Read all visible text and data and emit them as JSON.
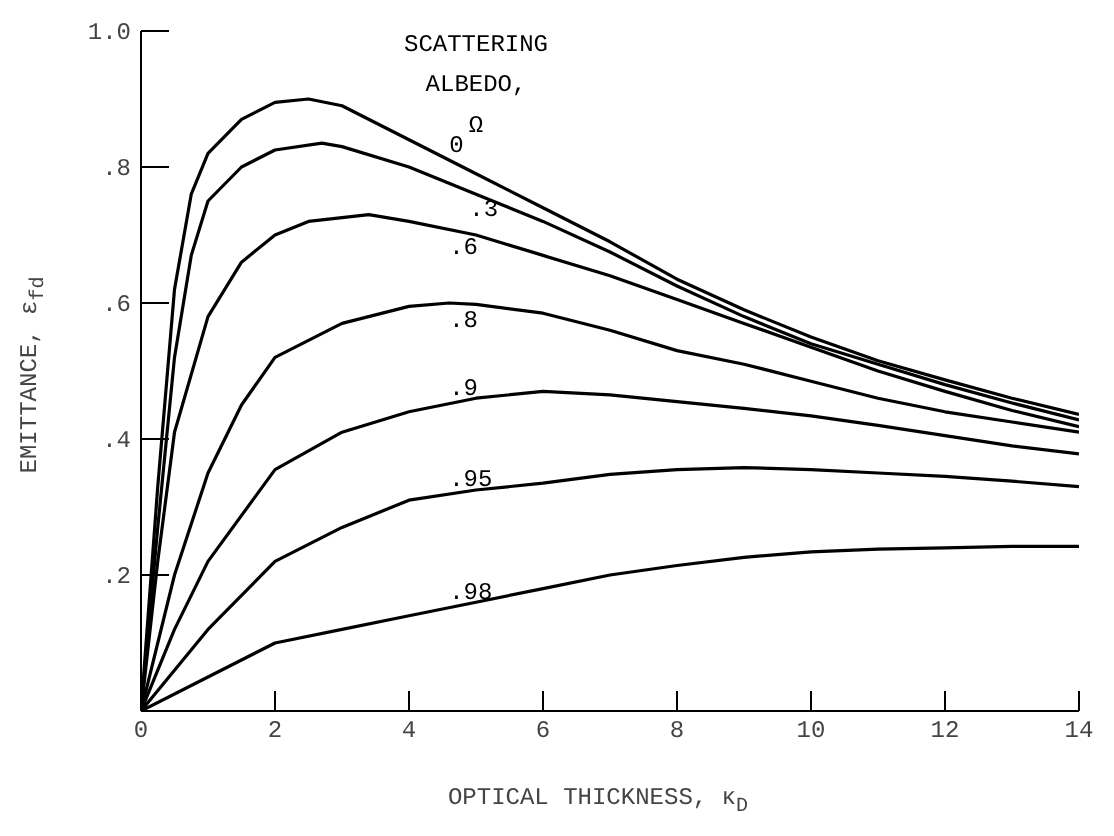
{
  "chart_data": {
    "type": "line",
    "xlabel": "OPTICAL THICKNESS, κ$_{D}$",
    "ylabel": "EMITTANCE, ε$_{fd}$",
    "legend_title": "SCATTERING ALBEDO, Ω",
    "xlim": [
      0,
      14
    ],
    "ylim": [
      0,
      1.0
    ],
    "xticks": [
      0,
      2,
      4,
      6,
      8,
      10,
      12,
      14
    ],
    "yticks": [
      {
        "value": 0,
        "label": null
      },
      {
        "value": 0.2,
        "label": ".2"
      },
      {
        "value": 0.4,
        "label": ".4"
      },
      {
        "value": 0.6,
        "label": ".6"
      },
      {
        "value": 0.8,
        "label": ".8"
      },
      {
        "value": 1.0,
        "label": "1.0"
      }
    ],
    "grid": false,
    "legend": false,
    "marker": "none",
    "line_style": "solid",
    "series": [
      {
        "name": "0",
        "color": "#000000",
        "x": [
          0,
          0.25,
          0.5,
          0.75,
          1,
          1.5,
          2,
          2.5,
          3,
          4,
          5,
          6,
          7,
          8,
          9,
          10,
          11,
          12,
          13,
          14
        ],
        "values": [
          0,
          0.33,
          0.62,
          0.76,
          0.82,
          0.87,
          0.895,
          0.9,
          0.89,
          0.84,
          0.79,
          0.74,
          0.69,
          0.635,
          0.59,
          0.55,
          0.515,
          0.487,
          0.46,
          0.436
        ]
      },
      {
        "name": ".3",
        "color": "#000000",
        "x": [
          0,
          0.25,
          0.5,
          0.75,
          1,
          1.5,
          2,
          2.7,
          3,
          4,
          5,
          6,
          7,
          8,
          9,
          10,
          11,
          12,
          13,
          14
        ],
        "values": [
          0,
          0.27,
          0.52,
          0.67,
          0.75,
          0.8,
          0.825,
          0.835,
          0.83,
          0.8,
          0.76,
          0.72,
          0.675,
          0.625,
          0.58,
          0.54,
          0.51,
          0.48,
          0.453,
          0.428
        ]
      },
      {
        "name": ".6",
        "color": "#000000",
        "x": [
          0,
          0.25,
          0.5,
          1,
          1.5,
          2,
          2.5,
          3.4,
          4,
          5,
          6,
          7,
          8,
          9,
          10,
          11,
          12,
          13,
          14
        ],
        "values": [
          0,
          0.22,
          0.41,
          0.58,
          0.66,
          0.7,
          0.72,
          0.73,
          0.72,
          0.7,
          0.67,
          0.64,
          0.605,
          0.57,
          0.535,
          0.5,
          0.47,
          0.442,
          0.418
        ]
      },
      {
        "name": ".8",
        "color": "#000000",
        "x": [
          0,
          0.5,
          1,
          1.5,
          2,
          3,
          4,
          4.6,
          5,
          6,
          7,
          8,
          9,
          10,
          11,
          12,
          13,
          14
        ],
        "values": [
          0,
          0.2,
          0.35,
          0.45,
          0.52,
          0.57,
          0.595,
          0.6,
          0.598,
          0.585,
          0.56,
          0.53,
          0.51,
          0.485,
          0.46,
          0.44,
          0.425,
          0.41
        ]
      },
      {
        "name": ".9",
        "color": "#000000",
        "x": [
          0,
          0.5,
          1,
          2,
          3,
          4,
          5,
          6,
          7,
          8,
          9,
          10,
          11,
          12,
          13,
          14
        ],
        "values": [
          0,
          0.12,
          0.22,
          0.355,
          0.41,
          0.44,
          0.46,
          0.47,
          0.465,
          0.455,
          0.445,
          0.434,
          0.42,
          0.405,
          0.39,
          0.378
        ]
      },
      {
        "name": ".95",
        "color": "#000000",
        "x": [
          0,
          0.5,
          1,
          2,
          3,
          4,
          5,
          6,
          7,
          8,
          9,
          10,
          11,
          12,
          13,
          14
        ],
        "values": [
          0,
          0.06,
          0.12,
          0.22,
          0.27,
          0.31,
          0.325,
          0.335,
          0.348,
          0.355,
          0.358,
          0.355,
          0.35,
          0.345,
          0.338,
          0.33
        ]
      },
      {
        "name": ".98",
        "color": "#000000",
        "x": [
          0,
          1,
          2,
          3,
          4,
          5,
          6,
          7,
          8,
          9,
          10,
          11,
          12,
          13,
          14
        ],
        "values": [
          0,
          0.05,
          0.1,
          0.12,
          0.14,
          0.16,
          0.18,
          0.2,
          0.214,
          0.226,
          0.234,
          0.238,
          0.24,
          0.242,
          0.242
        ]
      }
    ]
  }
}
